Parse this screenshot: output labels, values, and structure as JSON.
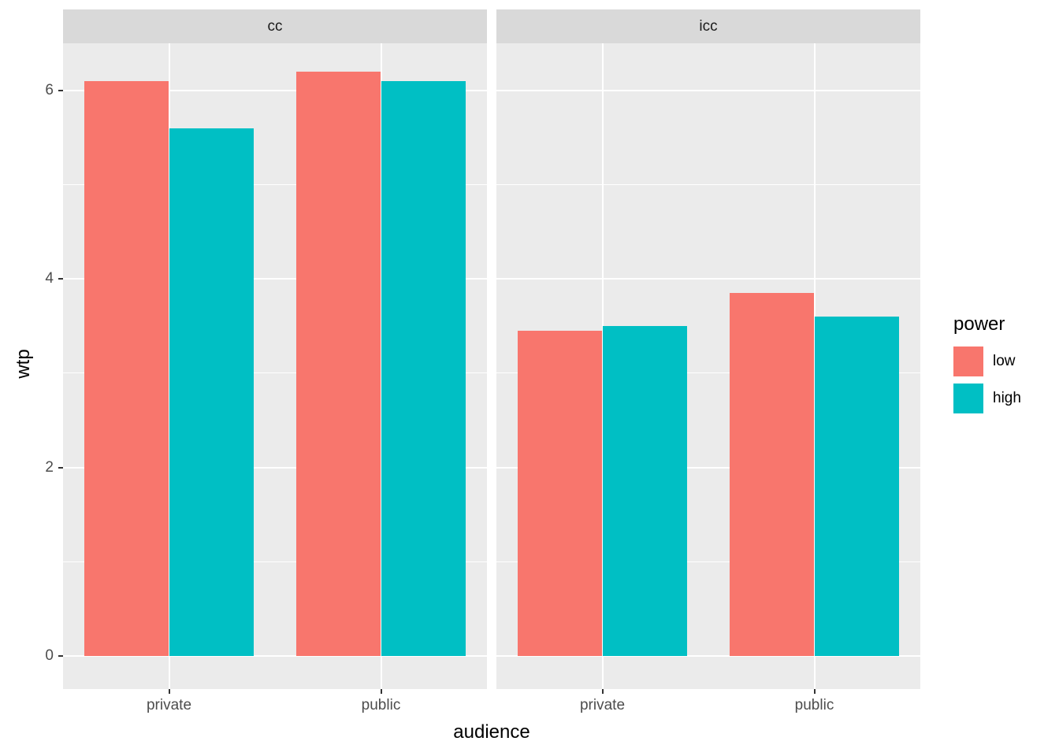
{
  "chart_data": {
    "type": "bar",
    "xlabel": "audience",
    "ylabel": "wtp",
    "categories": [
      "private",
      "public"
    ],
    "series_names": [
      "low",
      "high"
    ],
    "colors": {
      "low": "#F8766D",
      "high": "#00BFC4"
    },
    "ylim": [
      -0.35,
      6.5
    ],
    "y_major": [
      0,
      2,
      4,
      6
    ],
    "y_minor": [
      1,
      3,
      5
    ],
    "grid": true,
    "legend_position": "right",
    "panel_background": "#EBEBEB",
    "strip_background": "#D9D9D9",
    "facets": [
      {
        "label": "cc",
        "series": [
          {
            "name": "low",
            "values": [
              6.1,
              6.2
            ]
          },
          {
            "name": "high",
            "values": [
              5.6,
              6.1
            ]
          }
        ]
      },
      {
        "label": "icc",
        "series": [
          {
            "name": "low",
            "values": [
              3.45,
              3.85
            ]
          },
          {
            "name": "high",
            "values": [
              3.5,
              3.6
            ]
          }
        ]
      }
    ]
  },
  "legend": {
    "title": "power",
    "items": [
      {
        "label": "low",
        "color": "#F8766D"
      },
      {
        "label": "high",
        "color": "#00BFC4"
      }
    ]
  }
}
